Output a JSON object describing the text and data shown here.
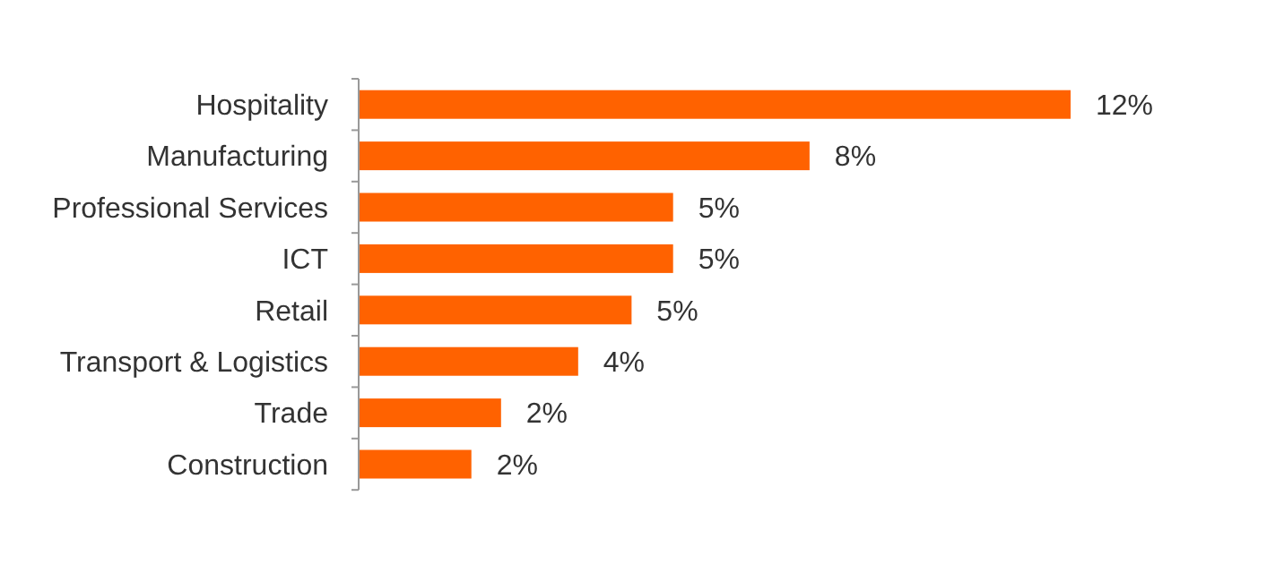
{
  "chart_data": {
    "type": "bar",
    "orientation": "horizontal",
    "categories": [
      "Hospitality",
      "Manufacturing",
      "Professional Services",
      "ICT",
      "Retail",
      "Transport & Logistics",
      "Trade",
      "Construction"
    ],
    "values": [
      12,
      7.6,
      5.3,
      5.3,
      4.6,
      3.7,
      2.4,
      1.9
    ],
    "value_labels": [
      "12%",
      "8%",
      "5%",
      "5%",
      "5%",
      "4%",
      "2%",
      "2%"
    ],
    "color": "#ff6200"
  }
}
